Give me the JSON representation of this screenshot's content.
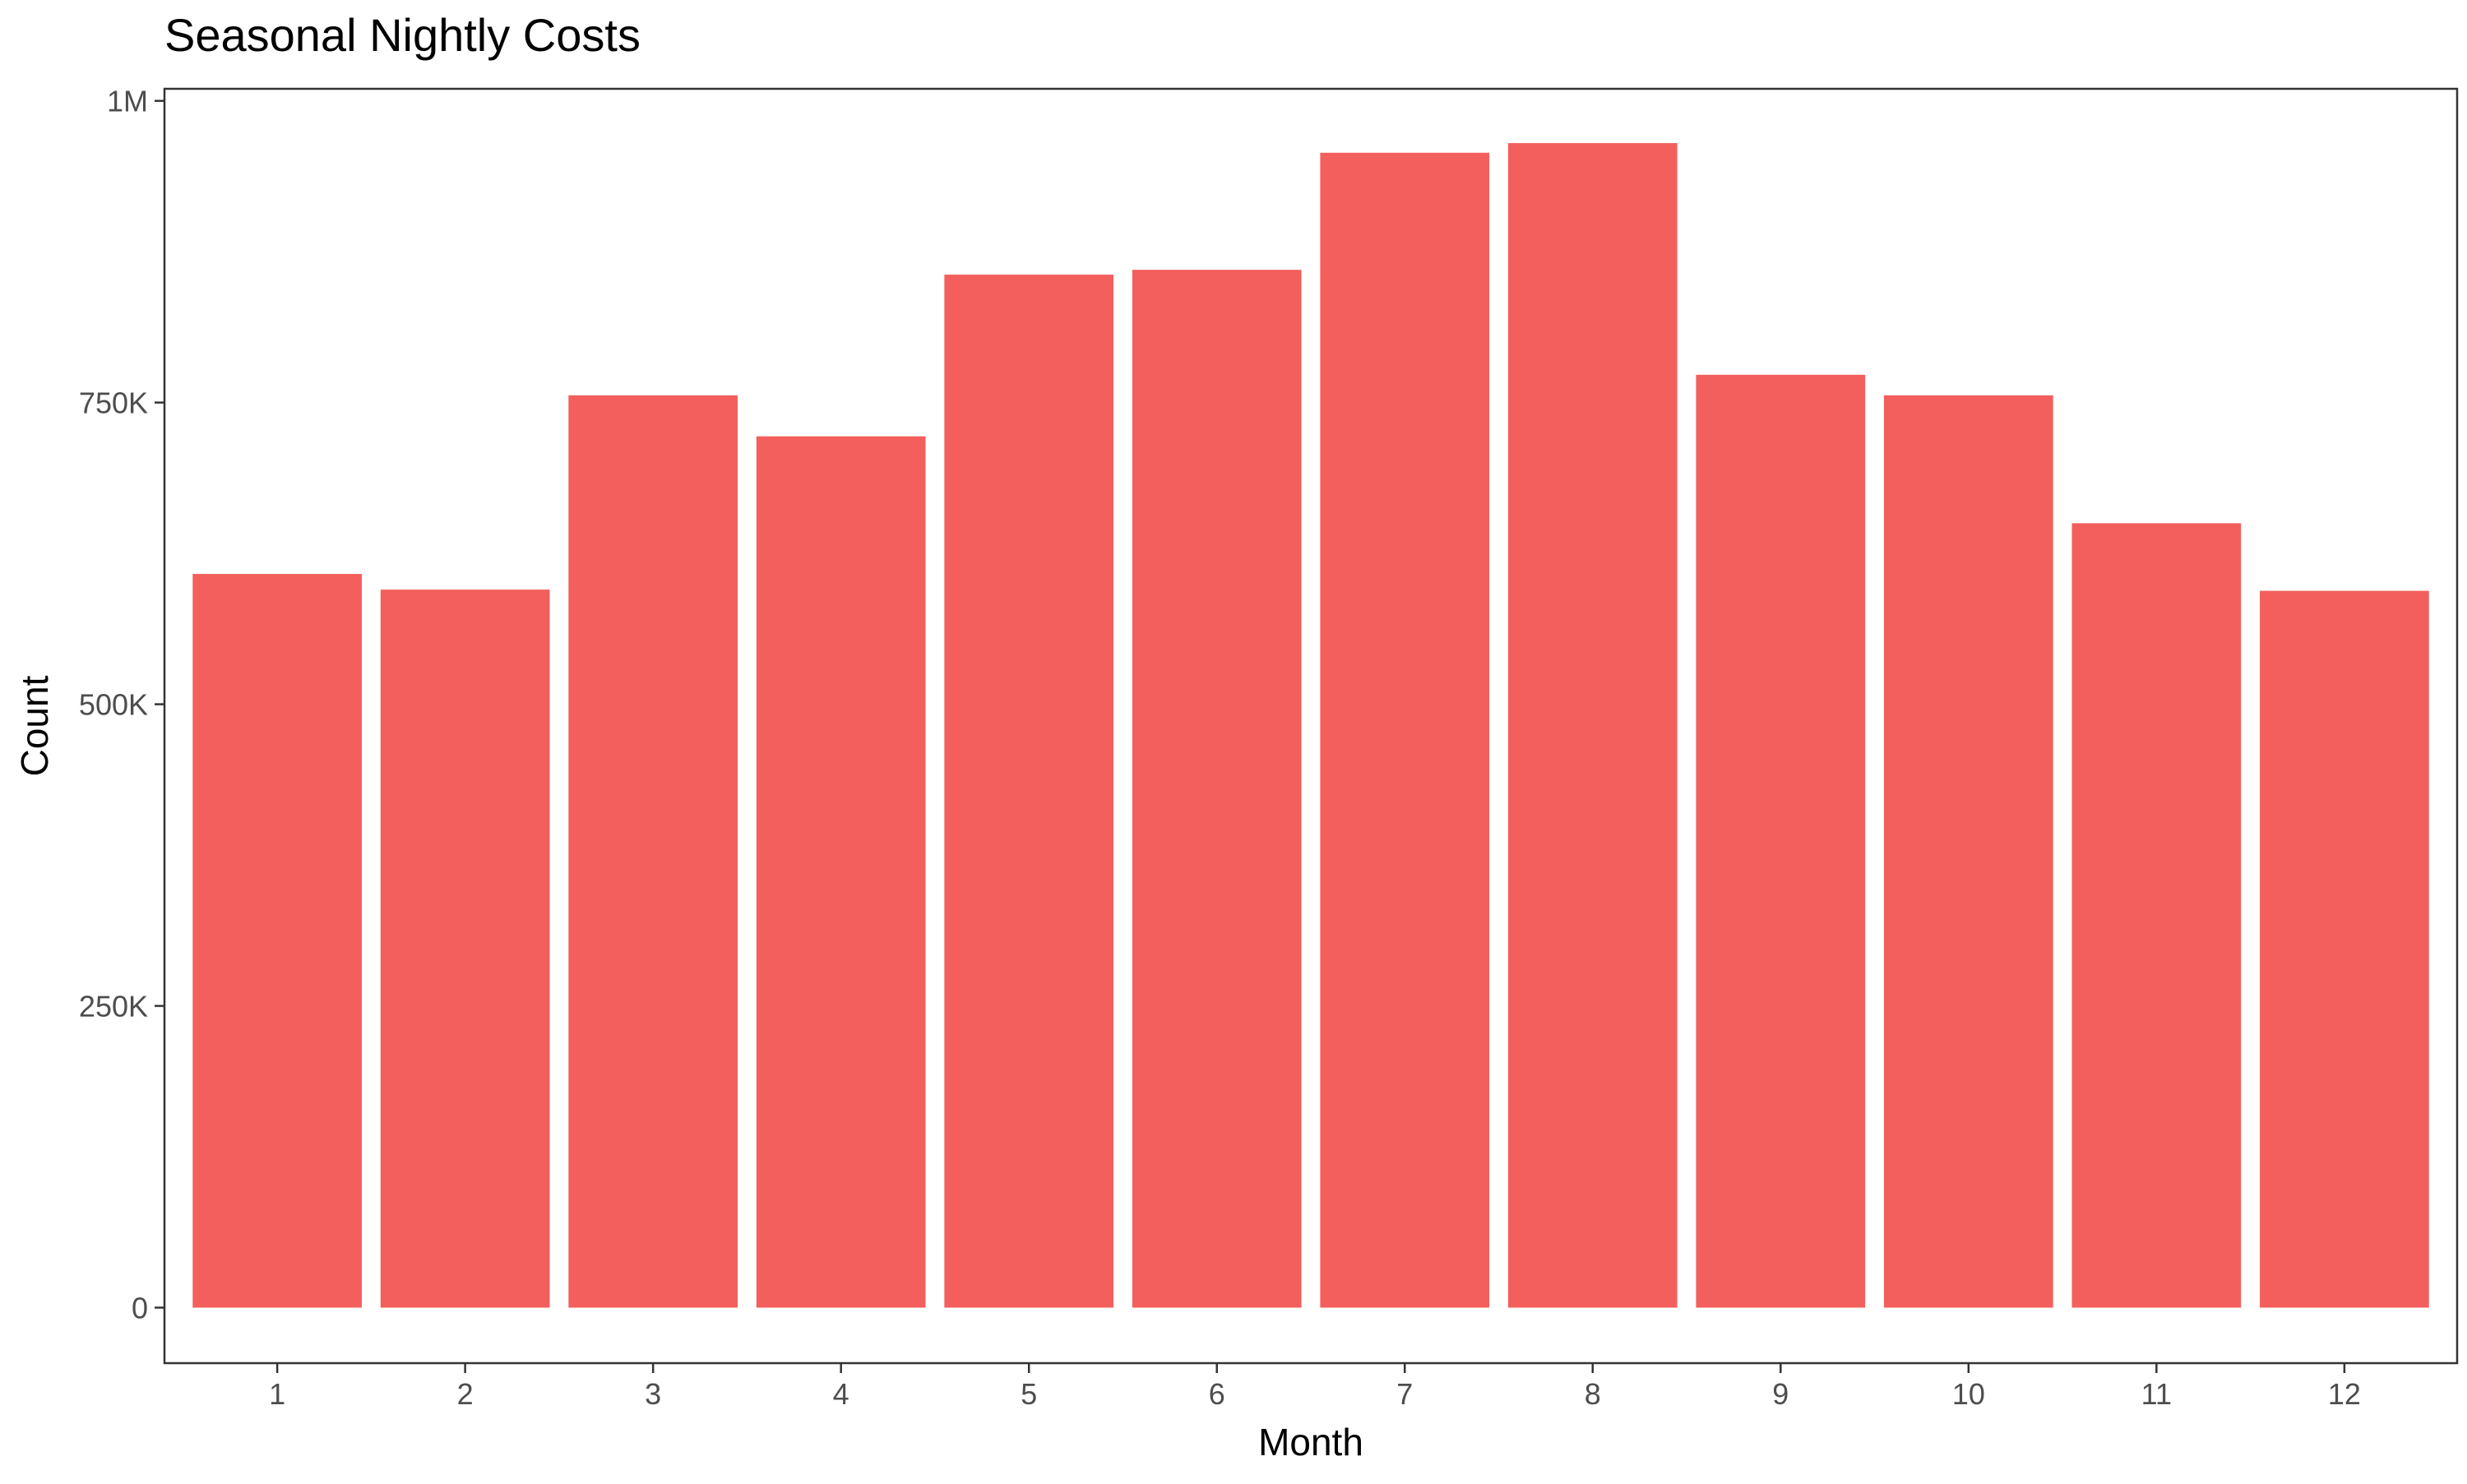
{
  "chart_data": {
    "type": "bar",
    "title": "Seasonal Nightly Costs",
    "xlabel": "Month",
    "ylabel": "Count",
    "categories": [
      "1",
      "2",
      "3",
      "4",
      "5",
      "6",
      "7",
      "8",
      "9",
      "10",
      "11",
      "12"
    ],
    "values": [
      608000,
      595000,
      756000,
      722000,
      856000,
      860000,
      957000,
      965000,
      773000,
      756000,
      650000,
      594000
    ],
    "ylim": [
      -46000,
      1010000
    ],
    "yticks": [
      0,
      250000,
      500000,
      750000,
      1000000
    ],
    "ytick_labels": [
      "0",
      "250K",
      "500K",
      "750K",
      "1M"
    ],
    "grid": false,
    "legend": "none",
    "bar_color": "#F35F5C",
    "frame_color": "#333333"
  }
}
